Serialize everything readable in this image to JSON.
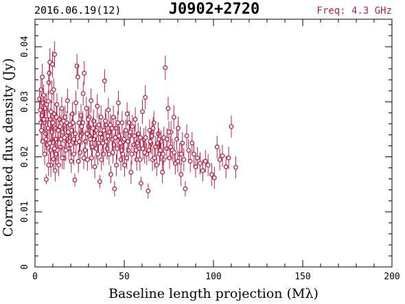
{
  "header": {
    "date_label": "2016.06.19(12)",
    "source_name": "J0902+2720",
    "freq_label": "Freq: 4.3 GHz"
  },
  "colors": {
    "marker": "#b22247",
    "axes": "#000000",
    "background": "#ffffff"
  },
  "chart_data": {
    "type": "scatter",
    "title": "J0902+2720",
    "xlabel": "Baseline length projection (Mλ)",
    "ylabel": "Correlated flux density (Jy)",
    "xlim": [
      0,
      200
    ],
    "ylim": [
      0,
      0.045
    ],
    "x_major_ticks": [
      0,
      50,
      100,
      150,
      200
    ],
    "x_tick_labels": [
      "0",
      "50",
      "100",
      "150",
      "200"
    ],
    "y_major_ticks": [
      0,
      0.01,
      0.02,
      0.03,
      0.04
    ],
    "y_tick_labels": [
      "0",
      "0.01",
      "0.02",
      "0.03",
      "0.04"
    ],
    "grid": false,
    "marker": "open circle with vertical error bar",
    "points": [
      [
        2.5,
        0.0305,
        0.002
      ],
      [
        3.0,
        0.0285,
        0.0022
      ],
      [
        3.4,
        0.0322,
        0.0021
      ],
      [
        3.8,
        0.0275,
        0.002
      ],
      [
        4.1,
        0.0345,
        0.0024
      ],
      [
        4.5,
        0.0298,
        0.0021
      ],
      [
        4.9,
        0.0312,
        0.002
      ],
      [
        5.2,
        0.0262,
        0.0022
      ],
      [
        5.6,
        0.0288,
        0.002
      ],
      [
        6.0,
        0.0242,
        0.0021
      ],
      [
        6.3,
        0.0159,
        0.0009
      ],
      [
        6.7,
        0.0222,
        0.002
      ],
      [
        7.0,
        0.0268,
        0.0021
      ],
      [
        7.4,
        0.0301,
        0.002
      ],
      [
        7.7,
        0.0335,
        0.0022
      ],
      [
        8.0,
        0.0352,
        0.0023
      ],
      [
        8.3,
        0.0372,
        0.0025
      ],
      [
        8.6,
        0.0212,
        0.002
      ],
      [
        8.9,
        0.0185,
        0.0022
      ],
      [
        9.2,
        0.0248,
        0.0021
      ],
      [
        9.5,
        0.0318,
        0.0021
      ],
      [
        9.8,
        0.0368,
        0.0024
      ],
      [
        10.1,
        0.0226,
        0.002
      ],
      [
        10.4,
        0.0196,
        0.0021
      ],
      [
        10.7,
        0.0278,
        0.0022
      ],
      [
        11.0,
        0.0386,
        0.0024
      ],
      [
        11.3,
        0.0175,
        0.002
      ],
      [
        11.6,
        0.0252,
        0.0021
      ],
      [
        11.9,
        0.0205,
        0.002
      ],
      [
        12.3,
        0.0295,
        0.0021
      ],
      [
        12.8,
        0.0232,
        0.002
      ],
      [
        13.3,
        0.0185,
        0.002
      ],
      [
        13.8,
        0.0268,
        0.0021
      ],
      [
        14.4,
        0.0218,
        0.002
      ],
      [
        15.0,
        0.0288,
        0.0021
      ],
      [
        15.6,
        0.0245,
        0.002
      ],
      [
        16.2,
        0.0198,
        0.0021
      ],
      [
        16.8,
        0.0272,
        0.0021
      ],
      [
        17.5,
        0.0238,
        0.002
      ],
      [
        18.2,
        0.0302,
        0.0022
      ],
      [
        18.9,
        0.0215,
        0.002
      ],
      [
        19.6,
        0.0258,
        0.0021
      ],
      [
        20.3,
        0.0192,
        0.0021
      ],
      [
        21.0,
        0.0278,
        0.0022
      ],
      [
        21.7,
        0.0232,
        0.002
      ],
      [
        22.3,
        0.0158,
        0.0012
      ],
      [
        22.9,
        0.0298,
        0.0022
      ],
      [
        23.5,
        0.0365,
        0.0022
      ],
      [
        24.0,
        0.0345,
        0.0022
      ],
      [
        24.6,
        0.0262,
        0.0021
      ],
      [
        25.2,
        0.0208,
        0.002
      ],
      [
        25.8,
        0.0275,
        0.0021
      ],
      [
        26.4,
        0.0242,
        0.002
      ],
      [
        27.0,
        0.0315,
        0.0022
      ],
      [
        27.6,
        0.0352,
        0.0022
      ],
      [
        28.2,
        0.0228,
        0.0021
      ],
      [
        28.8,
        0.0288,
        0.0021
      ],
      [
        29.4,
        0.0195,
        0.002
      ],
      [
        30.0,
        0.0255,
        0.0021
      ],
      [
        30.7,
        0.0238,
        0.002
      ],
      [
        31.4,
        0.0302,
        0.0022
      ],
      [
        32.1,
        0.0218,
        0.002
      ],
      [
        32.8,
        0.0265,
        0.0021
      ],
      [
        33.5,
        0.0182,
        0.0021
      ],
      [
        34.2,
        0.0248,
        0.002
      ],
      [
        34.9,
        0.0292,
        0.0022
      ],
      [
        35.6,
        0.0225,
        0.002
      ],
      [
        36.3,
        0.0155,
        0.0012
      ],
      [
        37.0,
        0.0272,
        0.0021
      ],
      [
        37.7,
        0.0235,
        0.002
      ],
      [
        38.4,
        0.0205,
        0.002
      ],
      [
        39.0,
        0.0338,
        0.0021
      ],
      [
        39.7,
        0.0258,
        0.0021
      ],
      [
        40.4,
        0.0215,
        0.002
      ],
      [
        41.1,
        0.0285,
        0.0022
      ],
      [
        41.8,
        0.0245,
        0.002
      ],
      [
        42.5,
        0.0168,
        0.0016
      ],
      [
        43.2,
        0.0232,
        0.002
      ],
      [
        43.9,
        0.0272,
        0.0021
      ],
      [
        44.6,
        0.0142,
        0.0014
      ],
      [
        45.3,
        0.0252,
        0.0021
      ],
      [
        46.0,
        0.0215,
        0.002
      ],
      [
        46.7,
        0.0298,
        0.0022
      ],
      [
        47.4,
        0.0235,
        0.002
      ],
      [
        48.1,
        0.0195,
        0.002
      ],
      [
        48.8,
        0.0262,
        0.0021
      ],
      [
        49.5,
        0.0228,
        0.002
      ],
      [
        50.2,
        0.0185,
        0.0021
      ],
      [
        50.9,
        0.0248,
        0.002
      ],
      [
        51.6,
        0.0278,
        0.0021
      ],
      [
        52.3,
        0.0212,
        0.002
      ],
      [
        53.0,
        0.0238,
        0.002
      ],
      [
        53.8,
        0.0172,
        0.0021
      ],
      [
        54.6,
        0.0255,
        0.0021
      ],
      [
        55.4,
        0.0222,
        0.002
      ],
      [
        56.2,
        0.0268,
        0.0022
      ],
      [
        57.0,
        0.0195,
        0.002
      ],
      [
        57.8,
        0.0242,
        0.002
      ],
      [
        58.6,
        0.0215,
        0.0021
      ],
      [
        59.4,
        0.0152,
        0.0012
      ],
      [
        60.2,
        0.0282,
        0.0022
      ],
      [
        61.0,
        0.0232,
        0.002
      ],
      [
        61.8,
        0.0308,
        0.0022
      ],
      [
        62.6,
        0.0205,
        0.002
      ],
      [
        63.4,
        0.0138,
        0.0014
      ],
      [
        64.2,
        0.0248,
        0.002
      ],
      [
        65.0,
        0.0225,
        0.002
      ],
      [
        65.8,
        0.0195,
        0.0021
      ],
      [
        66.6,
        0.0262,
        0.0021
      ],
      [
        67.4,
        0.0218,
        0.002
      ],
      [
        68.2,
        0.0185,
        0.002
      ],
      [
        69.0,
        0.0242,
        0.0021
      ],
      [
        69.8,
        0.0205,
        0.002
      ],
      [
        70.6,
        0.0228,
        0.002
      ],
      [
        71.4,
        0.0172,
        0.002
      ],
      [
        72.2,
        0.0235,
        0.002
      ],
      [
        73.0,
        0.0362,
        0.0022
      ],
      [
        73.8,
        0.0215,
        0.002
      ],
      [
        74.6,
        0.0288,
        0.0021
      ],
      [
        75.4,
        0.0198,
        0.002
      ],
      [
        76.2,
        0.0245,
        0.002
      ],
      [
        77.0,
        0.0212,
        0.0021
      ],
      [
        77.8,
        0.0272,
        0.0022
      ],
      [
        78.6,
        0.0188,
        0.002
      ],
      [
        79.4,
        0.0232,
        0.002
      ],
      [
        80.2,
        0.0252,
        0.0021
      ],
      [
        81.0,
        0.0205,
        0.002
      ],
      [
        81.8,
        0.0168,
        0.0021
      ],
      [
        82.6,
        0.0225,
        0.002
      ],
      [
        83.4,
        0.0195,
        0.0021
      ],
      [
        84.2,
        0.0142,
        0.0014
      ],
      [
        85.0,
        0.0238,
        0.0021
      ],
      [
        86.0,
        0.0212,
        0.002
      ],
      [
        87.0,
        0.0192,
        0.002
      ],
      [
        88.0,
        0.0225,
        0.002
      ],
      [
        89.0,
        0.0205,
        0.0021
      ],
      [
        90.0,
        0.0182,
        0.002
      ],
      [
        91.0,
        0.0198,
        0.002
      ],
      [
        92.5,
        0.0188,
        0.002
      ],
      [
        94.0,
        0.0175,
        0.002
      ],
      [
        95.5,
        0.0192,
        0.002
      ],
      [
        97.0,
        0.0185,
        0.002
      ],
      [
        99.0,
        0.0168,
        0.0021
      ],
      [
        100.5,
        0.0162,
        0.002
      ],
      [
        102.0,
        0.0218,
        0.002
      ],
      [
        103.5,
        0.0195,
        0.002
      ],
      [
        105.0,
        0.0202,
        0.002
      ],
      [
        107.0,
        0.0182,
        0.0021
      ],
      [
        108.5,
        0.0198,
        0.002
      ],
      [
        110.0,
        0.0255,
        0.002
      ],
      [
        112.5,
        0.0181,
        0.002
      ],
      [
        3.2,
        0.0262,
        0.002
      ],
      [
        4.3,
        0.0228,
        0.0021
      ],
      [
        5.4,
        0.0205,
        0.002
      ],
      [
        6.5,
        0.0295,
        0.0021
      ],
      [
        7.6,
        0.0185,
        0.002
      ],
      [
        8.7,
        0.0268,
        0.0021
      ],
      [
        9.6,
        0.0245,
        0.002
      ],
      [
        10.5,
        0.0322,
        0.0021
      ],
      [
        11.5,
        0.0232,
        0.002
      ],
      [
        12.6,
        0.0212,
        0.002
      ],
      [
        14.0,
        0.0255,
        0.0021
      ],
      [
        15.3,
        0.0198,
        0.002
      ],
      [
        16.5,
        0.0235,
        0.002
      ],
      [
        17.8,
        0.0262,
        0.0021
      ],
      [
        19.0,
        0.0228,
        0.002
      ],
      [
        20.5,
        0.0248,
        0.0021
      ],
      [
        21.8,
        0.0205,
        0.002
      ],
      [
        23.0,
        0.0225,
        0.002
      ],
      [
        24.3,
        0.0192,
        0.0021
      ],
      [
        25.5,
        0.0238,
        0.002
      ],
      [
        26.8,
        0.0262,
        0.0021
      ],
      [
        28.0,
        0.0212,
        0.002
      ],
      [
        29.2,
        0.0242,
        0.0021
      ],
      [
        30.4,
        0.0272,
        0.0021
      ],
      [
        31.7,
        0.0198,
        0.002
      ],
      [
        33.0,
        0.0232,
        0.002
      ],
      [
        34.4,
        0.0215,
        0.002
      ],
      [
        35.8,
        0.0258,
        0.0021
      ],
      [
        37.2,
        0.0195,
        0.002
      ],
      [
        38.6,
        0.0248,
        0.0021
      ],
      [
        40.0,
        0.0228,
        0.002
      ],
      [
        41.5,
        0.0205,
        0.002
      ],
      [
        43.0,
        0.0252,
        0.0021
      ],
      [
        44.2,
        0.0222,
        0.002
      ],
      [
        45.6,
        0.0185,
        0.002
      ],
      [
        47.0,
        0.0238,
        0.0021
      ],
      [
        48.5,
        0.0212,
        0.002
      ],
      [
        50.0,
        0.0232,
        0.002
      ],
      [
        51.4,
        0.0198,
        0.002
      ],
      [
        52.8,
        0.0262,
        0.0021
      ],
      [
        54.2,
        0.0205,
        0.002
      ],
      [
        55.7,
        0.0238,
        0.002
      ],
      [
        57.2,
        0.0225,
        0.002
      ],
      [
        58.8,
        0.0195,
        0.002
      ],
      [
        60.5,
        0.0215,
        0.002
      ],
      [
        62.0,
        0.0235,
        0.0021
      ],
      [
        63.8,
        0.0212,
        0.002
      ],
      [
        65.5,
        0.0238,
        0.002
      ],
      [
        67.0,
        0.0198,
        0.002
      ],
      [
        68.8,
        0.0225,
        0.002
      ],
      [
        70.2,
        0.0212,
        0.002
      ],
      [
        72.0,
        0.0195,
        0.002
      ],
      [
        74.0,
        0.0232,
        0.002
      ],
      [
        76.0,
        0.0218,
        0.002
      ],
      [
        78.0,
        0.0208,
        0.002
      ],
      [
        80.0,
        0.0192,
        0.002
      ],
      [
        82.0,
        0.0205,
        0.002
      ],
      [
        3.6,
        0.0248,
        0.002
      ],
      [
        5.0,
        0.0268,
        0.0021
      ],
      [
        6.2,
        0.0232,
        0.002
      ],
      [
        7.3,
        0.0252,
        0.002
      ],
      [
        8.2,
        0.0225,
        0.0021
      ],
      [
        9.0,
        0.0282,
        0.0021
      ],
      [
        10.0,
        0.0262,
        0.002
      ],
      [
        10.9,
        0.0215,
        0.002
      ],
      [
        12.0,
        0.0272,
        0.0021
      ],
      [
        13.0,
        0.0248,
        0.002
      ],
      [
        14.6,
        0.0232,
        0.002
      ],
      [
        16.0,
        0.0265,
        0.0021
      ],
      [
        17.2,
        0.0212,
        0.002
      ],
      [
        18.6,
        0.0245,
        0.002
      ],
      [
        20.0,
        0.0222,
        0.002
      ],
      [
        21.3,
        0.0262,
        0.0021
      ],
      [
        22.6,
        0.0242,
        0.002
      ],
      [
        24.8,
        0.0228,
        0.002
      ],
      [
        26.1,
        0.0255,
        0.0021
      ],
      [
        27.3,
        0.0198,
        0.002
      ],
      [
        29.8,
        0.0268,
        0.0021
      ],
      [
        31.0,
        0.0232,
        0.002
      ],
      [
        32.5,
        0.0252,
        0.002
      ],
      [
        33.8,
        0.0238,
        0.002
      ],
      [
        35.2,
        0.0205,
        0.002
      ],
      [
        36.6,
        0.0242,
        0.0021
      ],
      [
        38.0,
        0.0225,
        0.002
      ],
      [
        39.4,
        0.0265,
        0.0021
      ],
      [
        40.8,
        0.0238,
        0.002
      ],
      [
        42.2,
        0.0258,
        0.002
      ],
      [
        43.6,
        0.0208,
        0.002
      ],
      [
        45.0,
        0.0235,
        0.002
      ],
      [
        46.4,
        0.0262,
        0.0021
      ],
      [
        47.8,
        0.0225,
        0.002
      ],
      [
        49.2,
        0.0205,
        0.002
      ],
      [
        52.0,
        0.0228,
        0.002
      ],
      [
        53.4,
        0.0245,
        0.002
      ],
      [
        56.6,
        0.0212,
        0.002
      ],
      [
        59.0,
        0.0235,
        0.002
      ],
      [
        61.4,
        0.0208,
        0.002
      ],
      [
        64.6,
        0.0228,
        0.002
      ],
      [
        66.2,
        0.0252,
        0.002
      ],
      [
        69.4,
        0.0232,
        0.002
      ],
      [
        71.8,
        0.0205,
        0.002
      ],
      [
        75.0,
        0.0245,
        0.002
      ]
    ]
  }
}
